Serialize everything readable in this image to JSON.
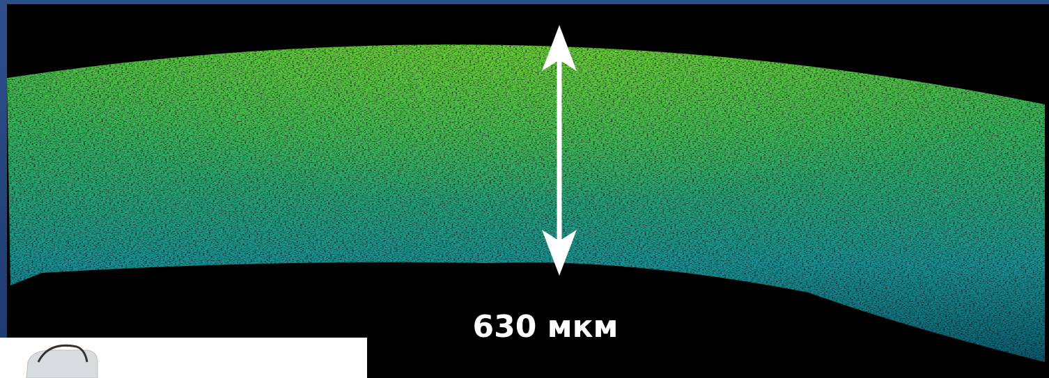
{
  "image": {
    "measurement_label": "630 мкм"
  }
}
